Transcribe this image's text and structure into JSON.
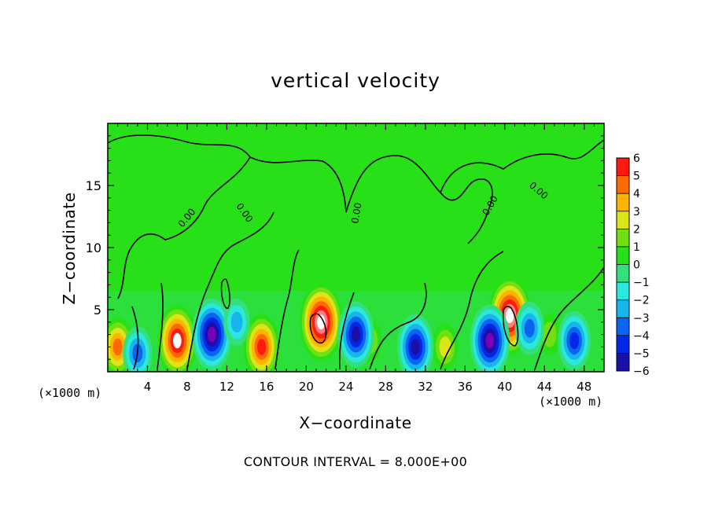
{
  "chart_data": {
    "type": "heatmap",
    "title": "vertical velocity",
    "xlabel": "X−coordinate",
    "ylabel": "Z−coordinate",
    "x_unit_label": "(×1000 m)",
    "footer": "CONTOUR INTERVAL = 8.000E+00",
    "contour_label": "0.00",
    "xlim": [
      0,
      50
    ],
    "ylim": [
      0,
      20
    ],
    "xticks": [
      4,
      8,
      12,
      16,
      20,
      24,
      28,
      32,
      36,
      40,
      44,
      48
    ],
    "yticks": [
      5,
      10,
      15
    ],
    "colorbar": {
      "ticks": [
        6,
        5,
        4,
        3,
        2,
        1,
        0,
        "−1",
        "−2",
        "−3",
        "−4",
        "−5",
        "−6"
      ],
      "levels": [
        -6,
        -5,
        -4,
        -3,
        -2,
        -1,
        0,
        1,
        2,
        3,
        4,
        5,
        6
      ],
      "colors": [
        "#7a00b8",
        "#1a10a8",
        "#0028e6",
        "#0a64f2",
        "#18b4ec",
        "#2ae8dc",
        "#34e07e",
        "#28e018",
        "#72e010",
        "#dce41a",
        "#ffb400",
        "#ff6a00",
        "#ff1a10",
        "#ff8080"
      ]
    },
    "updrafts": [
      {
        "x": 1.0,
        "z": 2.0,
        "peak": 5
      },
      {
        "x": 7.0,
        "z": 2.5,
        "peak": 7
      },
      {
        "x": 15.5,
        "z": 2.0,
        "peak": 6
      },
      {
        "x": 21.5,
        "z": 4.0,
        "peak": 8
      },
      {
        "x": 26.5,
        "z": 2.5,
        "peak": 2
      },
      {
        "x": 34.0,
        "z": 2.0,
        "peak": 3
      },
      {
        "x": 40.5,
        "z": 4.5,
        "peak": 8
      },
      {
        "x": 44.5,
        "z": 3.0,
        "peak": 2
      }
    ],
    "downdrafts": [
      {
        "x": 3.0,
        "z": 1.5,
        "peak": -4
      },
      {
        "x": 10.5,
        "z": 3.0,
        "peak": -7
      },
      {
        "x": 13.0,
        "z": 4.0,
        "peak": -3
      },
      {
        "x": 25.0,
        "z": 3.0,
        "peak": -6
      },
      {
        "x": 31.0,
        "z": 2.0,
        "peak": -6
      },
      {
        "x": 38.5,
        "z": 2.5,
        "peak": -7
      },
      {
        "x": 42.5,
        "z": 3.5,
        "peak": -4
      },
      {
        "x": 47.0,
        "z": 2.5,
        "peak": -5
      }
    ]
  }
}
